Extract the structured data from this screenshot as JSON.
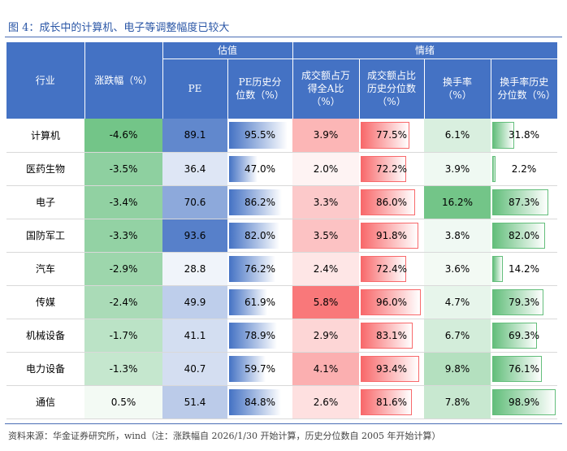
{
  "title": "图 4：成长中的计算机、电子等调整幅度已较大",
  "source": "资料来源：华金证券研究所，wind（注：涨跌幅自 2026/1/30 开始计算，历史分位数自 2005 年开始计算）",
  "groups": {
    "valuation": "估值",
    "sentiment": "情绪"
  },
  "headers": {
    "industry": "行业",
    "change": "涨跌幅（%）",
    "pe": "PE",
    "pe_pct": "PE历史分位数（%）",
    "turnover_share": "成交额占万得全A比（%）",
    "turnover_share_pct": "成交额占比历史分位数（%）",
    "turnover_rate": "换手率（%）",
    "turnover_rate_pct": "换手率历史分位数（%）"
  },
  "colors": {
    "header_bg": "#4472c4",
    "green": "#63be7b",
    "blue": "#4472c4",
    "red": "#f8696b",
    "title": "#2a56a6"
  },
  "rows": [
    {
      "industry": "计算机",
      "change": "-4.6%",
      "change_v": -4.6,
      "pe": "89.1",
      "pe_v": 89.1,
      "pe_pct": "95.5%",
      "pe_pct_v": 95.5,
      "ts": "3.9%",
      "ts_v": 3.9,
      "ts_pct": "77.5%",
      "ts_pct_v": 77.5,
      "tr": "6.1%",
      "tr_v": 6.1,
      "tr_pct": "31.8%",
      "tr_pct_v": 31.8
    },
    {
      "industry": "医药生物",
      "change": "-3.5%",
      "change_v": -3.5,
      "pe": "36.4",
      "pe_v": 36.4,
      "pe_pct": "47.0%",
      "pe_pct_v": 47.0,
      "ts": "2.0%",
      "ts_v": 2.0,
      "ts_pct": "72.2%",
      "ts_pct_v": 72.2,
      "tr": "3.9%",
      "tr_v": 3.9,
      "tr_pct": "2.2%",
      "tr_pct_v": 2.2
    },
    {
      "industry": "电子",
      "change": "-3.4%",
      "change_v": -3.4,
      "pe": "70.6",
      "pe_v": 70.6,
      "pe_pct": "86.2%",
      "pe_pct_v": 86.2,
      "ts": "3.3%",
      "ts_v": 3.3,
      "ts_pct": "86.0%",
      "ts_pct_v": 86.0,
      "tr": "16.2%",
      "tr_v": 16.2,
      "tr_pct": "87.3%",
      "tr_pct_v": 87.3
    },
    {
      "industry": "国防军工",
      "change": "-3.3%",
      "change_v": -3.3,
      "pe": "93.6",
      "pe_v": 93.6,
      "pe_pct": "82.0%",
      "pe_pct_v": 82.0,
      "ts": "3.5%",
      "ts_v": 3.5,
      "ts_pct": "91.8%",
      "ts_pct_v": 91.8,
      "tr": "3.8%",
      "tr_v": 3.8,
      "tr_pct": "82.0%",
      "tr_pct_v": 82.0
    },
    {
      "industry": "汽车",
      "change": "-2.9%",
      "change_v": -2.9,
      "pe": "28.8",
      "pe_v": 28.8,
      "pe_pct": "76.2%",
      "pe_pct_v": 76.2,
      "ts": "2.4%",
      "ts_v": 2.4,
      "ts_pct": "72.4%",
      "ts_pct_v": 72.4,
      "tr": "3.6%",
      "tr_v": 3.6,
      "tr_pct": "14.2%",
      "tr_pct_v": 14.2
    },
    {
      "industry": "传媒",
      "change": "-2.4%",
      "change_v": -2.4,
      "pe": "49.9",
      "pe_v": 49.9,
      "pe_pct": "61.9%",
      "pe_pct_v": 61.9,
      "ts": "5.8%",
      "ts_v": 5.8,
      "ts_pct": "96.0%",
      "ts_pct_v": 96.0,
      "tr": "4.7%",
      "tr_v": 4.7,
      "tr_pct": "79.3%",
      "tr_pct_v": 79.3
    },
    {
      "industry": "机械设备",
      "change": "-1.7%",
      "change_v": -1.7,
      "pe": "41.1",
      "pe_v": 41.1,
      "pe_pct": "78.9%",
      "pe_pct_v": 78.9,
      "ts": "2.9%",
      "ts_v": 2.9,
      "ts_pct": "83.1%",
      "ts_pct_v": 83.1,
      "tr": "6.7%",
      "tr_v": 6.7,
      "tr_pct": "69.3%",
      "tr_pct_v": 69.3
    },
    {
      "industry": "电力设备",
      "change": "-1.3%",
      "change_v": -1.3,
      "pe": "40.7",
      "pe_v": 40.7,
      "pe_pct": "59.7%",
      "pe_pct_v": 59.7,
      "ts": "4.1%",
      "ts_v": 4.1,
      "ts_pct": "93.4%",
      "ts_pct_v": 93.4,
      "tr": "9.8%",
      "tr_v": 9.8,
      "tr_pct": "76.1%",
      "tr_pct_v": 76.1
    },
    {
      "industry": "通信",
      "change": "0.5%",
      "change_v": 0.5,
      "pe": "51.4",
      "pe_v": 51.4,
      "pe_pct": "84.8%",
      "pe_pct_v": 84.8,
      "ts": "2.6%",
      "ts_v": 2.6,
      "ts_pct": "81.6%",
      "ts_pct_v": 81.6,
      "tr": "7.8%",
      "tr_v": 7.8,
      "tr_pct": "98.9%",
      "tr_pct_v": 98.9
    }
  ]
}
